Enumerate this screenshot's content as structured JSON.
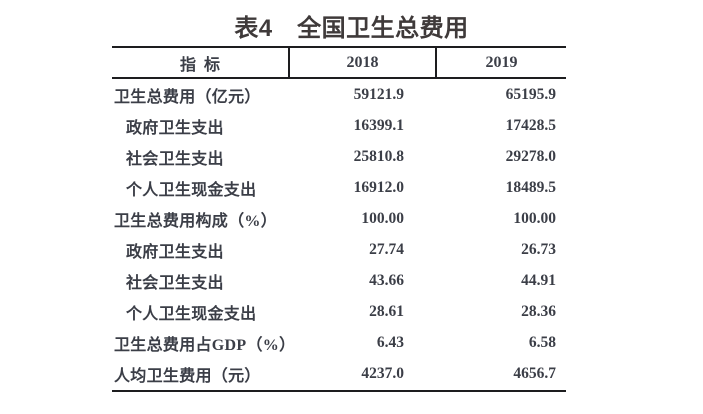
{
  "colors": {
    "background": "#ffffff",
    "title_text": "#3f3a3a",
    "body_text": "#3b3e47",
    "rule": "#1d1d1f"
  },
  "title": "表4　全国卫生总费用",
  "table": {
    "header": {
      "indicator": "指  标",
      "col2018": "2018",
      "col2019": "2019"
    },
    "rows": [
      {
        "label": "卫生总费用（亿元）",
        "v2018": "59121.9",
        "v2019": "65195.9",
        "indent": false
      },
      {
        "label": "政府卫生支出",
        "v2018": "16399.1",
        "v2019": "17428.5",
        "indent": true
      },
      {
        "label": "社会卫生支出",
        "v2018": "25810.8",
        "v2019": "29278.0",
        "indent": true
      },
      {
        "label": "个人卫生现金支出",
        "v2018": "16912.0",
        "v2019": "18489.5",
        "indent": true
      },
      {
        "label": "卫生总费用构成（%）",
        "v2018": "100.00",
        "v2019": "100.00",
        "indent": false
      },
      {
        "label": "政府卫生支出",
        "v2018": "27.74",
        "v2019": "26.73",
        "indent": true
      },
      {
        "label": "社会卫生支出",
        "v2018": "43.66",
        "v2019": "44.91",
        "indent": true
      },
      {
        "label": "个人卫生现金支出",
        "v2018": "28.61",
        "v2019": "28.36",
        "indent": true
      },
      {
        "label": "卫生总费用占GDP（%）",
        "v2018": "6.43",
        "v2019": "6.58",
        "indent": false
      },
      {
        "label": "人均卫生费用（元）",
        "v2018": "4237.0",
        "v2019": "4656.7",
        "indent": false
      }
    ]
  }
}
